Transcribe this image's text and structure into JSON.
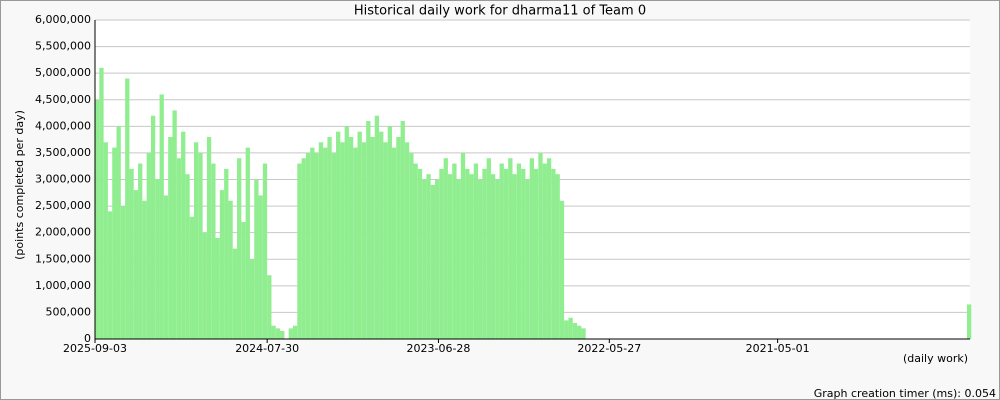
{
  "chart_data": {
    "type": "bar",
    "title": "Historical daily work for dharma11 of Team 0",
    "ylabel": "(points completed per day)",
    "xlabel": "(daily work)",
    "color": "#90ee90",
    "grid": true,
    "xlim": [
      "2025-09-03",
      "2020-02-09"
    ],
    "xticks": [
      "2025-09-03",
      "2024-07-30",
      "2023-06-28",
      "2022-05-27",
      "2021-05-01"
    ],
    "ylim": [
      0,
      6000000
    ],
    "yticks": [
      0,
      {
        "value": 500000,
        "label": "500,000"
      },
      {
        "value": 1000000,
        "label": "1,000,000"
      },
      {
        "value": 1500000,
        "label": "1,500,000"
      },
      {
        "value": 2000000,
        "label": "2,000,000"
      },
      {
        "value": 2500000,
        "label": "2,500,000"
      },
      {
        "value": 3000000,
        "label": "3,000,000"
      },
      {
        "value": 3500000,
        "label": "3,500,000"
      },
      {
        "value": 4000000,
        "label": "4,000,000"
      },
      {
        "value": 4500000,
        "label": "4,500,000"
      },
      {
        "value": 5000000,
        "label": "5,000,000"
      },
      {
        "value": 5500000,
        "label": "5,500,000"
      },
      {
        "value": 6000000,
        "label": "6,000,000"
      }
    ],
    "x": [
      "2025-09-03",
      "2025-08-24",
      "2025-08-14",
      "2025-08-04",
      "2025-07-25",
      "2025-07-15",
      "2025-07-05",
      "2025-06-25",
      "2025-06-15",
      "2025-06-05",
      "2025-05-26",
      "2025-05-16",
      "2025-05-06",
      "2025-04-26",
      "2025-04-16",
      "2025-04-06",
      "2025-03-27",
      "2025-03-17",
      "2025-03-07",
      "2025-02-25",
      "2025-02-15",
      "2025-02-05",
      "2025-01-26",
      "2025-01-16",
      "2025-01-06",
      "2024-12-27",
      "2024-12-17",
      "2024-12-07",
      "2024-11-27",
      "2024-11-17",
      "2024-11-07",
      "2024-10-28",
      "2024-10-18",
      "2024-10-08",
      "2024-09-28",
      "2024-09-18",
      "2024-09-08",
      "2024-08-29",
      "2024-08-19",
      "2024-08-09",
      "2024-07-30",
      "2024-07-20",
      "2024-07-10",
      "2024-06-30",
      "2024-06-20",
      "2024-06-10",
      "2024-05-31",
      "2024-05-21",
      "2024-05-11",
      "2024-05-01",
      "2024-04-21",
      "2024-04-11",
      "2024-04-01",
      "2024-03-22",
      "2024-03-12",
      "2024-03-02",
      "2024-02-21",
      "2024-02-11",
      "2024-02-01",
      "2024-01-22",
      "2024-01-12",
      "2024-01-02",
      "2023-12-23",
      "2023-12-13",
      "2023-12-03",
      "2023-11-23",
      "2023-11-13",
      "2023-11-03",
      "2023-10-24",
      "2023-10-14",
      "2023-10-04",
      "2023-09-24",
      "2023-09-14",
      "2023-09-04",
      "2023-08-25",
      "2023-08-15",
      "2023-08-05",
      "2023-07-26",
      "2023-07-16",
      "2023-07-06",
      "2023-06-26",
      "2023-06-16",
      "2023-06-06",
      "2023-05-27",
      "2023-05-17",
      "2023-05-07",
      "2023-04-27",
      "2023-04-17",
      "2023-04-07",
      "2023-03-28",
      "2023-03-18",
      "2023-03-08",
      "2023-02-26",
      "2023-02-16",
      "2023-02-06",
      "2023-01-27",
      "2023-01-17",
      "2023-01-07",
      "2022-12-28",
      "2022-12-18",
      "2022-12-08",
      "2022-11-28",
      "2022-11-18",
      "2022-11-08",
      "2022-10-29",
      "2022-10-19",
      "2022-10-09",
      "2022-09-29",
      "2022-09-19",
      "2022-09-09",
      "2022-08-30",
      "2022-08-20",
      "2022-08-10",
      "2022-07-31",
      "2020-02-16"
    ],
    "values": [
      4500000,
      5100000,
      3700000,
      2400000,
      3600000,
      4000000,
      2500000,
      4900000,
      3200000,
      2800000,
      3300000,
      2600000,
      3500000,
      4200000,
      3000000,
      4600000,
      2700000,
      3800000,
      4300000,
      3400000,
      3900000,
      3100000,
      2300000,
      3700000,
      3500000,
      2000000,
      3800000,
      3300000,
      1900000,
      2800000,
      3200000,
      2600000,
      1700000,
      3400000,
      2200000,
      3600000,
      1500000,
      3000000,
      2700000,
      3300000,
      1200000,
      250000,
      200000,
      150000,
      0,
      200000,
      250000,
      3300000,
      3400000,
      3500000,
      3600000,
      3500000,
      3700000,
      3600000,
      3800000,
      3500000,
      3900000,
      3700000,
      4000000,
      3800000,
      3600000,
      3900000,
      3700000,
      4100000,
      3800000,
      4200000,
      3900000,
      3700000,
      4000000,
      3600000,
      3800000,
      4100000,
      3700000,
      3500000,
      3300000,
      3200000,
      3000000,
      3100000,
      2900000,
      3000000,
      3200000,
      3400000,
      3100000,
      3300000,
      3000000,
      3500000,
      3200000,
      3100000,
      3300000,
      3000000,
      3200000,
      3400000,
      3100000,
      3000000,
      3300000,
      3200000,
      3400000,
      3100000,
      3300000,
      3200000,
      3000000,
      3400000,
      3200000,
      3500000,
      3300000,
      3400000,
      3200000,
      3100000,
      2600000,
      350000,
      400000,
      300000,
      250000,
      200000,
      650000
    ]
  },
  "footer": "Graph creation timer (ms): 0.054"
}
